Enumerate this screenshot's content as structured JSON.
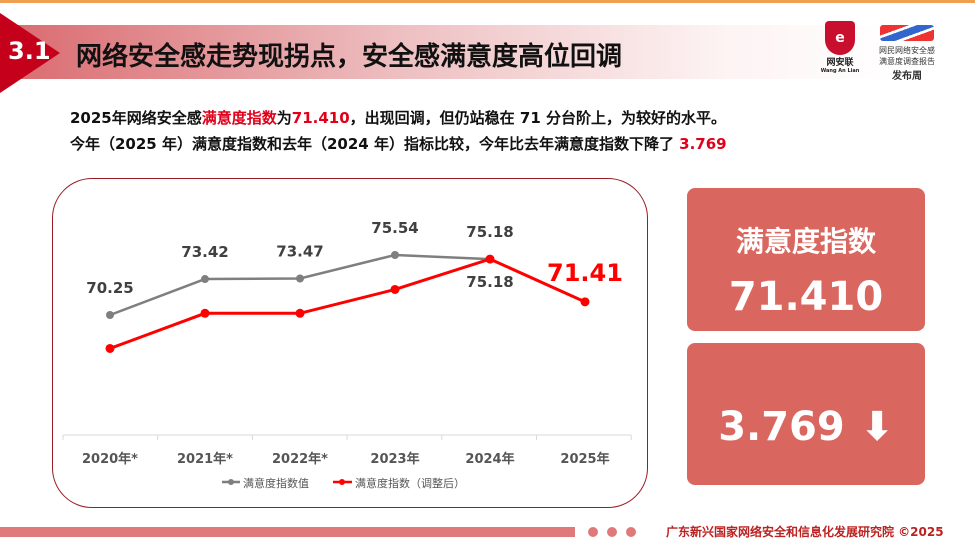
{
  "header": {
    "section_number": "3.1",
    "title": "网络安全感走势现拐点，安全感满意度高位回调",
    "logo_left": {
      "text": "网安联",
      "sub": "Wang An Lian"
    },
    "logo_right": {
      "line1": "网民网络安全感",
      "line2": "满意度调查报告",
      "line3": "发布周"
    }
  },
  "description": {
    "line1": [
      {
        "t": "2025年网络安全感",
        "red": false
      },
      {
        "t": "满意度指数",
        "red": true
      },
      {
        "t": "为",
        "red": false
      },
      {
        "t": "71.410",
        "red": true
      },
      {
        "t": "，出现回调，但仍站稳在 71 分台阶上，为较好的水平。",
        "red": false
      }
    ],
    "line2": [
      {
        "t": "今年（2025 年）满意度指数和去年（2024 年）指标比较，今年比去年满意度指数下降了 ",
        "red": false
      },
      {
        "t": "3.769",
        "red": true
      }
    ]
  },
  "chart_data": {
    "type": "line",
    "categories": [
      "2020年*",
      "2021年*",
      "2022年*",
      "2023年",
      "2024年",
      "2025年"
    ],
    "series": [
      {
        "name": "满意度指数值",
        "color": "#7f7f7f",
        "values": [
          70.25,
          73.42,
          73.47,
          75.54,
          75.18,
          null
        ],
        "labels": [
          "70.25",
          "73.42",
          "73.47",
          "75.54",
          "75.18",
          ""
        ]
      },
      {
        "name": "满意度指数（调整后）",
        "color": "#ff0000",
        "values": [
          67.3,
          70.4,
          70.4,
          72.5,
          75.18,
          71.41
        ],
        "labels": [
          "",
          "",
          "",
          "",
          "75.18",
          "71.41"
        ]
      }
    ],
    "ylim": [
      64,
      78
    ],
    "grid": false,
    "legend": "bottom"
  },
  "cards": {
    "index_title": "满意度指数",
    "index_value": "71.410",
    "drop_value": "3.769",
    "drop_icon": "arrow-down-icon"
  },
  "footer": {
    "text": "广东新兴国家网络安全和信息化发展研究院 ©2025"
  }
}
